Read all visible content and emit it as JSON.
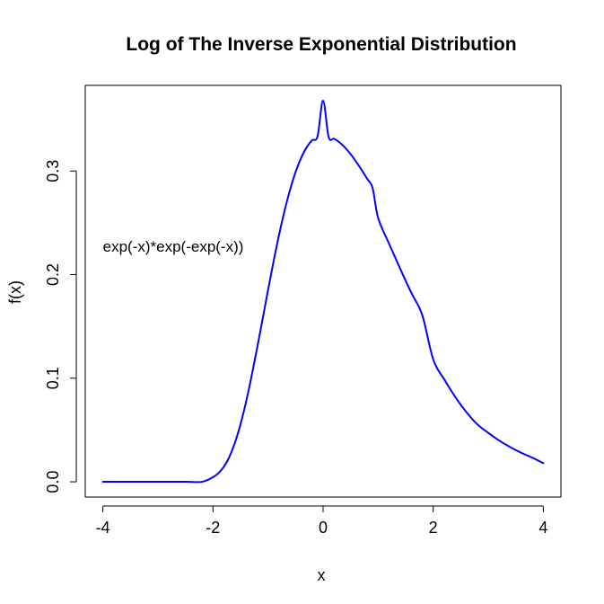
{
  "chart_data": {
    "type": "line",
    "title": "Log of The Inverse Exponential Distribution",
    "xlabel": "x",
    "ylabel": "f(x)",
    "xlim": [
      -4.32,
      4.32
    ],
    "ylim": [
      -0.0147,
      0.3826
    ],
    "x_ticks": [
      -4,
      -2,
      0,
      2,
      4
    ],
    "x_tick_labels": [
      "-4",
      "-2",
      "0",
      "2",
      "4"
    ],
    "y_ticks": [
      0.0,
      0.1,
      0.2,
      0.3
    ],
    "y_tick_labels": [
      "0.0",
      "0.1",
      "0.2",
      "0.3"
    ],
    "grid": false,
    "annotation": {
      "text": "exp(-x)*exp(-exp(-x))",
      "x": -4,
      "y": 0.222
    },
    "series": [
      {
        "color": "#0000ff",
        "x": [
          -4.0,
          -3.5,
          -3.0,
          -2.5,
          -2.2,
          -2.0,
          -1.9,
          -1.8,
          -1.7,
          -1.6,
          -1.5,
          -1.4,
          -1.3,
          -1.2,
          -1.1,
          -1.0,
          -0.9,
          -0.8,
          -0.7,
          -0.6,
          -0.5,
          -0.4,
          -0.3,
          -0.2,
          -0.1,
          0.0,
          0.1,
          0.2,
          0.3,
          0.4,
          0.5,
          0.6,
          0.7,
          0.8,
          0.9,
          1.0,
          1.2,
          1.4,
          1.6,
          1.8,
          2.0,
          2.2,
          2.4,
          2.6,
          2.8,
          3.0,
          3.2,
          3.4,
          3.6,
          3.8,
          4.0
        ],
        "values": [
          0.0,
          0.0,
          0.0,
          0.0,
          0.0,
          0.0045,
          0.0084,
          0.0147,
          0.0244,
          0.0379,
          0.0555,
          0.077,
          0.1017,
          0.1286,
          0.1567,
          0.1851,
          0.2126,
          0.2383,
          0.2616,
          0.2819,
          0.2989,
          0.3125,
          0.3227,
          0.3296,
          0.3336,
          0.3679,
          0.3329,
          0.3311,
          0.3275,
          0.3225,
          0.3163,
          0.3089,
          0.301,
          0.2925,
          0.2834,
          0.2546,
          0.2296,
          0.2057,
          0.1827,
          0.1611,
          0.1182,
          0.0989,
          0.082,
          0.0675,
          0.0555,
          0.0473,
          0.0398,
          0.0335,
          0.028,
          0.0233,
          0.018
        ]
      }
    ]
  }
}
